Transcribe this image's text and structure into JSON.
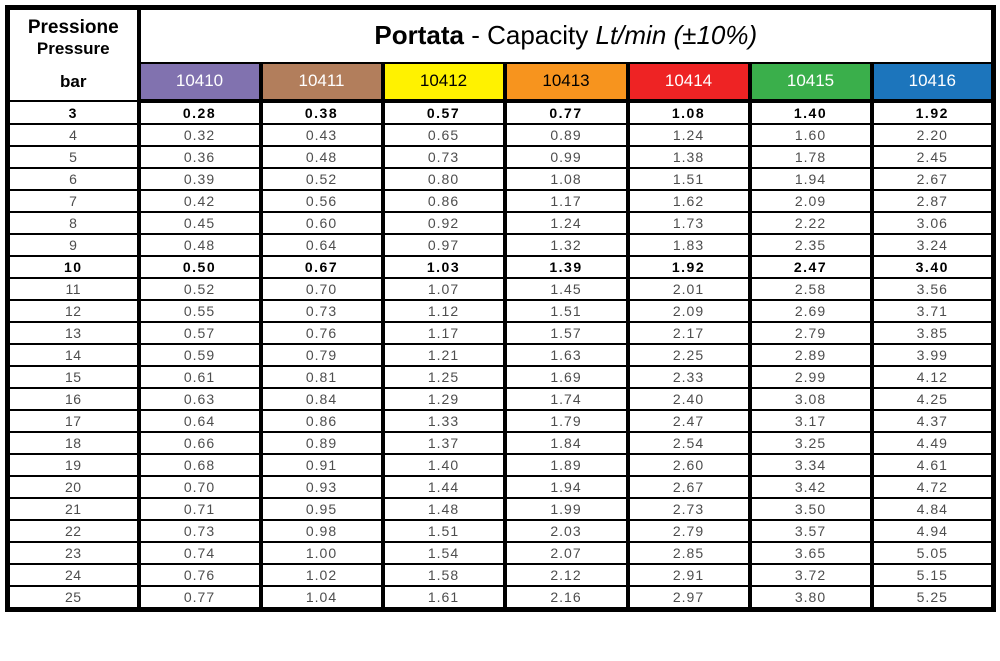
{
  "header": {
    "pressure_label_it": "Pressione",
    "pressure_label_en": "Pressure",
    "pressure_unit": "bar",
    "title_bold": "Portata",
    "title_regular": " - Capacity ",
    "title_italic": "Lt/min (±10%)"
  },
  "columns": [
    {
      "code": "10410",
      "color": "#8172AF",
      "text_color": "#FFFFFF"
    },
    {
      "code": "10411",
      "color": "#B27E5C",
      "text_color": "#FFFFFF"
    },
    {
      "code": "10412",
      "color": "#FFF200",
      "text_color": "#000000"
    },
    {
      "code": "10413",
      "color": "#F7941E",
      "text_color": "#000000"
    },
    {
      "code": "10414",
      "color": "#EE2324",
      "text_color": "#FFFFFF"
    },
    {
      "code": "10415",
      "color": "#3AAF4B",
      "text_color": "#FFFFFF"
    },
    {
      "code": "10416",
      "color": "#1C75BC",
      "text_color": "#FFFFFF"
    }
  ],
  "rows": [
    {
      "pressure": "3",
      "bold": true,
      "values": [
        "0.28",
        "0.38",
        "0.57",
        "0.77",
        "1.08",
        "1.40",
        "1.92"
      ]
    },
    {
      "pressure": "4",
      "bold": false,
      "values": [
        "0.32",
        "0.43",
        "0.65",
        "0.89",
        "1.24",
        "1.60",
        "2.20"
      ]
    },
    {
      "pressure": "5",
      "bold": false,
      "values": [
        "0.36",
        "0.48",
        "0.73",
        "0.99",
        "1.38",
        "1.78",
        "2.45"
      ]
    },
    {
      "pressure": "6",
      "bold": false,
      "values": [
        "0.39",
        "0.52",
        "0.80",
        "1.08",
        "1.51",
        "1.94",
        "2.67"
      ]
    },
    {
      "pressure": "7",
      "bold": false,
      "values": [
        "0.42",
        "0.56",
        "0.86",
        "1.17",
        "1.62",
        "2.09",
        "2.87"
      ]
    },
    {
      "pressure": "8",
      "bold": false,
      "values": [
        "0.45",
        "0.60",
        "0.92",
        "1.24",
        "1.73",
        "2.22",
        "3.06"
      ]
    },
    {
      "pressure": "9",
      "bold": false,
      "values": [
        "0.48",
        "0.64",
        "0.97",
        "1.32",
        "1.83",
        "2.35",
        "3.24"
      ]
    },
    {
      "pressure": "10",
      "bold": true,
      "values": [
        "0.50",
        "0.67",
        "1.03",
        "1.39",
        "1.92",
        "2.47",
        "3.40"
      ]
    },
    {
      "pressure": "11",
      "bold": false,
      "values": [
        "0.52",
        "0.70",
        "1.07",
        "1.45",
        "2.01",
        "2.58",
        "3.56"
      ]
    },
    {
      "pressure": "12",
      "bold": false,
      "values": [
        "0.55",
        "0.73",
        "1.12",
        "1.51",
        "2.09",
        "2.69",
        "3.71"
      ]
    },
    {
      "pressure": "13",
      "bold": false,
      "values": [
        "0.57",
        "0.76",
        "1.17",
        "1.57",
        "2.17",
        "2.79",
        "3.85"
      ]
    },
    {
      "pressure": "14",
      "bold": false,
      "values": [
        "0.59",
        "0.79",
        "1.21",
        "1.63",
        "2.25",
        "2.89",
        "3.99"
      ]
    },
    {
      "pressure": "15",
      "bold": false,
      "values": [
        "0.61",
        "0.81",
        "1.25",
        "1.69",
        "2.33",
        "2.99",
        "4.12"
      ]
    },
    {
      "pressure": "16",
      "bold": false,
      "values": [
        "0.63",
        "0.84",
        "1.29",
        "1.74",
        "2.40",
        "3.08",
        "4.25"
      ]
    },
    {
      "pressure": "17",
      "bold": false,
      "values": [
        "0.64",
        "0.86",
        "1.33",
        "1.79",
        "2.47",
        "3.17",
        "4.37"
      ]
    },
    {
      "pressure": "18",
      "bold": false,
      "values": [
        "0.66",
        "0.89",
        "1.37",
        "1.84",
        "2.54",
        "3.25",
        "4.49"
      ]
    },
    {
      "pressure": "19",
      "bold": false,
      "values": [
        "0.68",
        "0.91",
        "1.40",
        "1.89",
        "2.60",
        "3.34",
        "4.61"
      ]
    },
    {
      "pressure": "20",
      "bold": false,
      "values": [
        "0.70",
        "0.93",
        "1.44",
        "1.94",
        "2.67",
        "3.42",
        "4.72"
      ]
    },
    {
      "pressure": "21",
      "bold": false,
      "values": [
        "0.71",
        "0.95",
        "1.48",
        "1.99",
        "2.73",
        "3.50",
        "4.84"
      ]
    },
    {
      "pressure": "22",
      "bold": false,
      "values": [
        "0.73",
        "0.98",
        "1.51",
        "2.03",
        "2.79",
        "3.57",
        "4.94"
      ]
    },
    {
      "pressure": "23",
      "bold": false,
      "values": [
        "0.74",
        "1.00",
        "1.54",
        "2.07",
        "2.85",
        "3.65",
        "5.05"
      ]
    },
    {
      "pressure": "24",
      "bold": false,
      "values": [
        "0.76",
        "1.02",
        "1.58",
        "2.12",
        "2.91",
        "3.72",
        "5.15"
      ]
    },
    {
      "pressure": "25",
      "bold": false,
      "values": [
        "0.77",
        "1.04",
        "1.61",
        "2.16",
        "2.97",
        "3.80",
        "5.25"
      ]
    }
  ]
}
